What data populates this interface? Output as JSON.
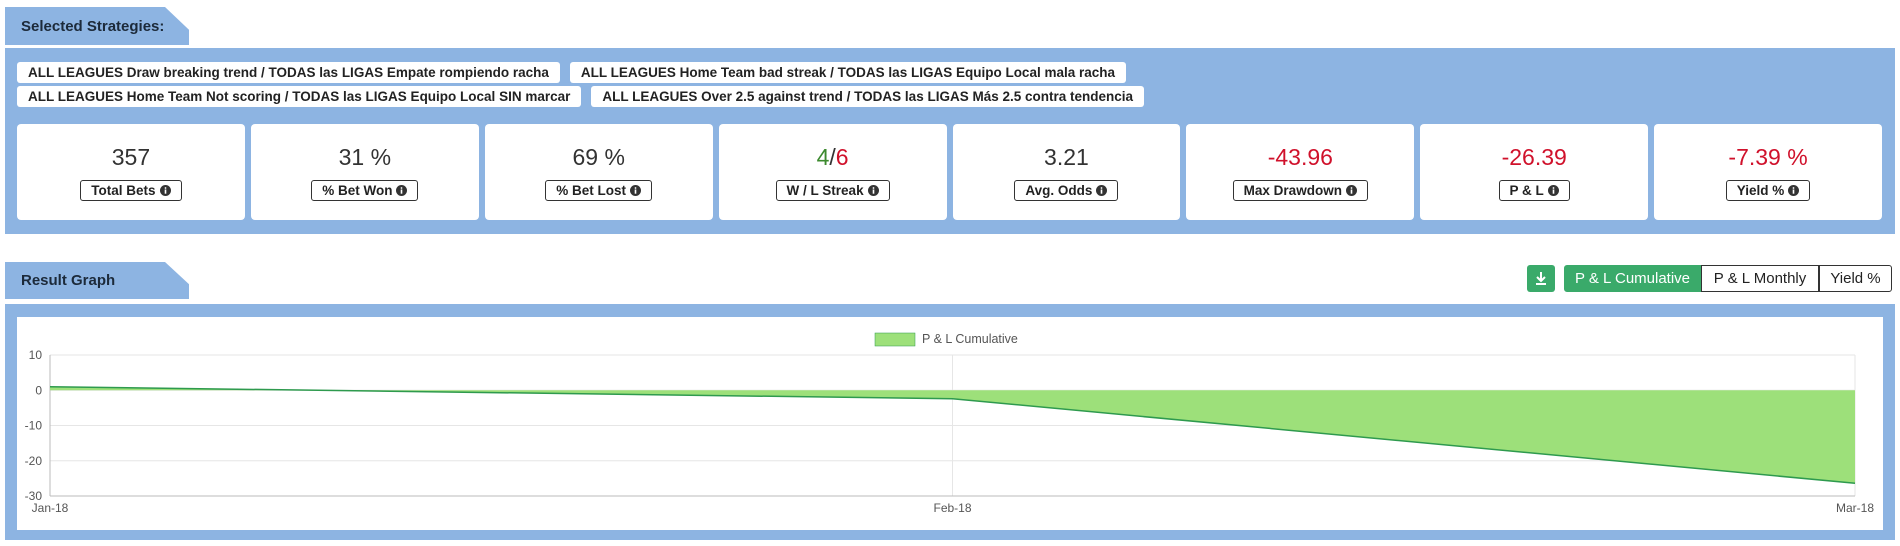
{
  "header": {
    "title": "Selected Strategies:"
  },
  "strategies": [
    "ALL LEAGUES Draw breaking trend / TODAS las LIGAS Empate rompiendo racha",
    "ALL LEAGUES Home Team bad streak / TODAS las LIGAS Equipo Local mala racha",
    "ALL LEAGUES Home Team Not scoring / TODAS las LIGAS Equipo Local SIN marcar",
    "ALL LEAGUES Over 2.5 against trend / TODAS las LIGAS Más 2.5 contra tendencia"
  ],
  "stats": [
    {
      "value": "357",
      "label": "Total Bets",
      "color": "#333333"
    },
    {
      "value": "31 %",
      "label": "% Bet Won",
      "color": "#333333"
    },
    {
      "value": "69 %",
      "label": "% Bet Lost",
      "color": "#333333"
    },
    {
      "wins": "4",
      "separator": "/",
      "losses": "6",
      "label": "W / L Streak",
      "wins_color": "#3c8a2e",
      "losses_color": "#d0112b"
    },
    {
      "value": "3.21",
      "label": "Avg. Odds",
      "color": "#333333"
    },
    {
      "value": "-43.96",
      "label": "Max Drawdown",
      "color": "#d0112b"
    },
    {
      "value": "-26.39",
      "label": "P & L",
      "color": "#d0112b"
    },
    {
      "value": "-7.39 %",
      "label": "Yield %",
      "color": "#d0112b"
    }
  ],
  "result_graph": {
    "title": "Result Graph",
    "buttons": [
      "P & L Cumulative",
      "P & L Monthly",
      "Yield %"
    ],
    "active_button": 0
  },
  "chart_data": {
    "type": "area",
    "categories": [
      "Jan-18",
      "Feb-18",
      "Mar-18"
    ],
    "series": [
      {
        "name": "P & L Cumulative",
        "color": "#9de07a",
        "line_color": "#2e9a4e",
        "values": [
          1,
          -2.4,
          -26.39
        ]
      }
    ],
    "ylim": [
      -30,
      10
    ],
    "yticks": [
      -30,
      -20,
      -10,
      0,
      10
    ],
    "grid": true,
    "legend": "top"
  }
}
